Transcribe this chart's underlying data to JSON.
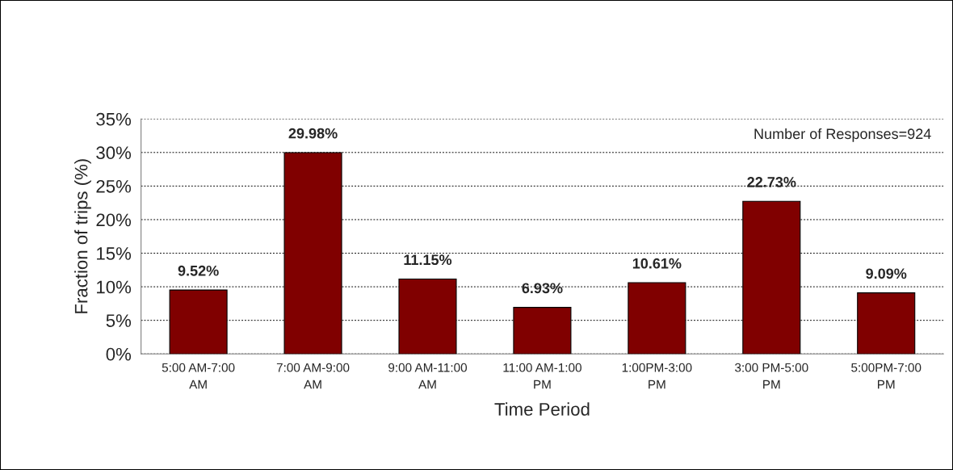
{
  "chart_data": {
    "type": "bar",
    "xlabel": "Time Period",
    "ylabel": "Fraction of trips (%)",
    "categories": [
      "5:00 AM-7:00\nAM",
      "7:00 AM-9:00\nAM",
      "9:00 AM-11:00\nAM",
      "11:00 AM-1:00\nPM",
      "1:00PM-3:00\nPM",
      "3:00 PM-5:00\nPM",
      "5:00PM-7:00\nPM"
    ],
    "values": [
      9.52,
      29.98,
      11.15,
      6.93,
      10.61,
      22.73,
      9.09
    ],
    "value_labels": [
      "9.52%",
      "29.98%",
      "11.15%",
      "6.93%",
      "10.61%",
      "22.73%",
      "9.09%"
    ],
    "color": "#800000",
    "ylim": [
      0,
      35
    ],
    "yticks": [
      {
        "value": 0,
        "label": "0%"
      },
      {
        "value": 5,
        "label": "5%"
      },
      {
        "value": 10,
        "label": "10%"
      },
      {
        "value": 15,
        "label": "15%"
      },
      {
        "value": 20,
        "label": "20%"
      },
      {
        "value": 25,
        "label": "25%"
      },
      {
        "value": 30,
        "label": "30%"
      },
      {
        "value": 35,
        "label": "35%"
      }
    ],
    "grid": "y",
    "annotations": [
      "Number of Responses=924"
    ]
  }
}
